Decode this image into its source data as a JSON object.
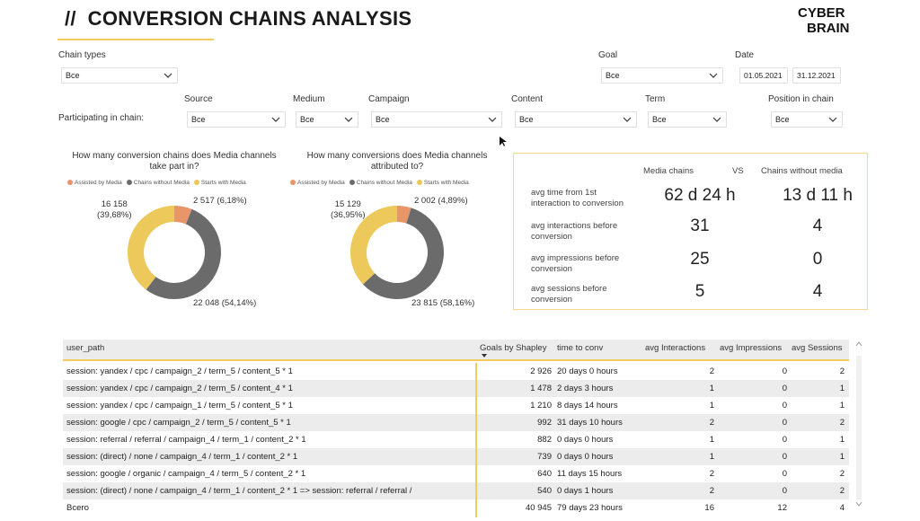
{
  "header": {
    "title_prefix": "//",
    "title": "CONVERSION CHAINS ANALYSIS",
    "logo_line1": "CYBER",
    "logo_line2": "BRAIN",
    "accent_color": "#f2cd5e"
  },
  "filters": {
    "chain_types": {
      "label": "Chain types",
      "value": "Все"
    },
    "goal": {
      "label": "Goal",
      "value": "Все"
    },
    "date": {
      "label": "Date",
      "from": "01.05.2021",
      "to": "31.12.2021"
    },
    "participating_label": "Participating in chain:",
    "source": {
      "label": "Source",
      "value": "Все"
    },
    "medium": {
      "label": "Medium",
      "value": "Все"
    },
    "campaign": {
      "label": "Campaign",
      "value": "Все"
    },
    "content": {
      "label": "Content",
      "value": "Все"
    },
    "term": {
      "label": "Term",
      "value": "Все"
    },
    "position": {
      "label": "Position in chain",
      "value": "Все"
    }
  },
  "charts": {
    "legend": {
      "assisted": "Assisted by Media",
      "without": "Chains without Media",
      "starts": "Starts with Media",
      "colors": {
        "assisted": "#e8956a",
        "without": "#6b6b6b",
        "starts": "#ecc95a"
      }
    },
    "chains": {
      "title_line1": "How many conversion chains does Media channels",
      "title_line2": "take part in?",
      "label_assisted": "2 517 (6,18%)",
      "label_without": "22 048 (54,14%)",
      "label_starts_1": "16 158",
      "label_starts_2": "(39,68%)"
    },
    "conversions": {
      "title_line1": "How many conversions does Media channels",
      "title_line2": "attributed to?",
      "label_assisted": "2 002 (4,89%)",
      "label_without": "23 815 (58,16%)",
      "label_starts_1": "15 129",
      "label_starts_2": "(36,95%)"
    }
  },
  "chart_data": [
    {
      "type": "pie",
      "title": "How many conversion chains does Media channels take part in?",
      "categories": [
        "Assisted by Media",
        "Chains without Media",
        "Starts with Media"
      ],
      "values": [
        2517,
        22048,
        16158
      ],
      "percents": [
        6.18,
        54.14,
        39.68
      ]
    },
    {
      "type": "pie",
      "title": "How many conversions does Media channels attributed to?",
      "categories": [
        "Assisted by Media",
        "Chains without Media",
        "Starts with Media"
      ],
      "values": [
        2002,
        23815,
        15129
      ],
      "percents": [
        4.89,
        58.16,
        36.95
      ]
    }
  ],
  "kpi": {
    "col_media": "Media chains",
    "vs": "VS",
    "col_without": "Chains without media",
    "rows": [
      {
        "label1": "avg time from 1st",
        "label2": "interaction to conversion",
        "media": "62 d 24 h",
        "without": "13 d 11 h"
      },
      {
        "label1": "avg interactions before",
        "label2": "conversion",
        "media": "31",
        "without": "4"
      },
      {
        "label1": "avg impressions before",
        "label2": "conversion",
        "media": "25",
        "without": "0"
      },
      {
        "label1": "avg sessions before",
        "label2": "conversion",
        "media": "5",
        "without": "4"
      }
    ]
  },
  "table": {
    "columns": {
      "path": "user_path",
      "goals": "Goals by Shapley",
      "time": "time to conv",
      "interactions": "avg Interactions",
      "impressions": "avg Impressions",
      "sessions": "avg Sessions"
    },
    "rows": [
      {
        "path": "session: yandex / cpc / campaign_2 / term_5 / content_5 * 1",
        "goals": "2 926",
        "time": "20 days 0 hours",
        "interactions": "2",
        "impressions": "0",
        "sessions": "2"
      },
      {
        "path": "session: yandex / cpc / campaign_2 / term_5 / content_4 * 1",
        "goals": "1 478",
        "time": "2 days 3 hours",
        "interactions": "1",
        "impressions": "0",
        "sessions": "1"
      },
      {
        "path": "session: yandex / cpc / campaign_1 / term_5 / content_5 * 1",
        "goals": "1 210",
        "time": "8 days 14 hours",
        "interactions": "1",
        "impressions": "0",
        "sessions": "1"
      },
      {
        "path": "session: google / cpc / campaign_2 / term_5 / content_5 * 1",
        "goals": "992",
        "time": "31 days 10 hours",
        "interactions": "2",
        "impressions": "0",
        "sessions": "2"
      },
      {
        "path": "session: referral / referral / campaign_4 / term_1 / content_2 * 1",
        "goals": "882",
        "time": "0 days 0 hours",
        "interactions": "1",
        "impressions": "0",
        "sessions": "1"
      },
      {
        "path": "session: (direct) / none / campaign_4 / term_1 / content_2 * 1",
        "goals": "739",
        "time": "0 days 0 hours",
        "interactions": "1",
        "impressions": "0",
        "sessions": "1"
      },
      {
        "path": "session: google / organic / campaign_4 / term_5 / content_2 * 1",
        "goals": "640",
        "time": "11 days 15 hours",
        "interactions": "2",
        "impressions": "0",
        "sessions": "2"
      },
      {
        "path": "session: (direct) / none / campaign_4 / term_1 / content_2 * 1 => session: referral / referral /",
        "goals": "540",
        "time": "0 days 1 hours",
        "interactions": "2",
        "impressions": "0",
        "sessions": "2"
      }
    ],
    "total": {
      "label": "Всего",
      "goals": "40 945",
      "time": "79 days 23 hours",
      "interactions": "16",
      "impressions": "12",
      "sessions": "4"
    }
  }
}
